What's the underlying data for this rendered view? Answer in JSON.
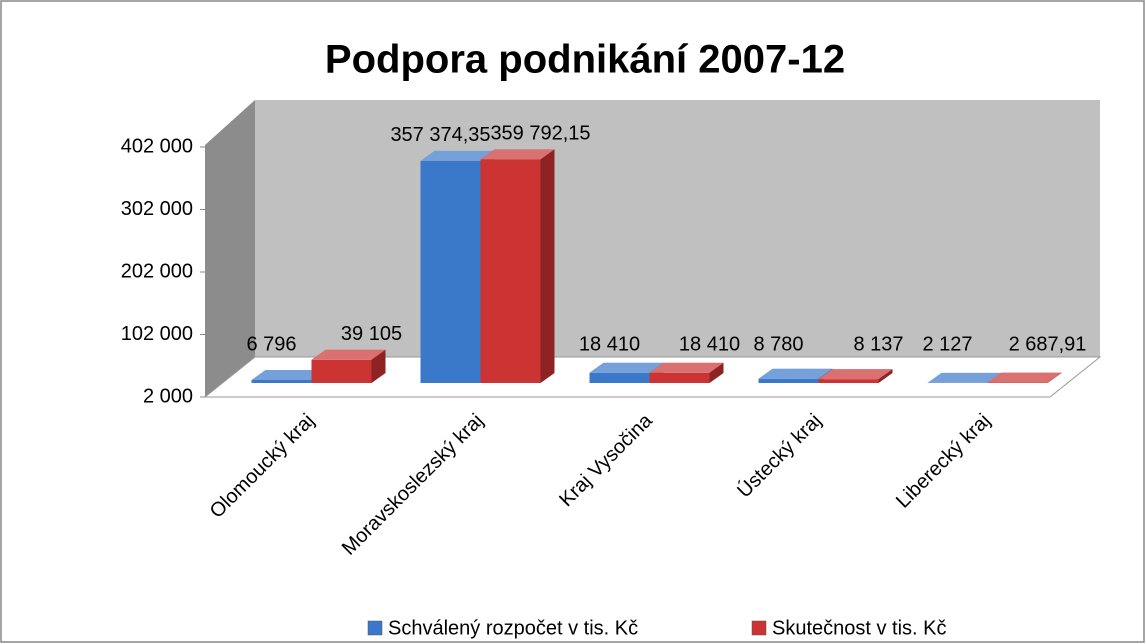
{
  "chart_data": {
    "type": "bar3d",
    "title": "Podpora podnikání 2007-12",
    "categories": [
      "Olomoucký kraj",
      "Moravskoslezský kraj",
      "Kraj Vysočina",
      "Ústecký kraj",
      "Liberecký kraj"
    ],
    "series": [
      {
        "name": "Schválený rozpočet v tis. Kč",
        "color": "#3a78c9",
        "values": [
          6796,
          357374.35,
          18410,
          8780,
          2127
        ],
        "value_labels": [
          "6 796",
          "357 374,35",
          "18 410",
          "8 780",
          "2 127"
        ]
      },
      {
        "name": "Skutečnost v tis. Kč",
        "color": "#cc3333",
        "values": [
          39105,
          359792.15,
          18410,
          8137,
          2687.91
        ],
        "value_labels": [
          "39 105",
          "359 792,15",
          "18 410",
          "8 137",
          "2 687,91"
        ]
      }
    ],
    "ylim": [
      2000,
      402000
    ],
    "yticks": [
      {
        "value": 2000,
        "label": "2 000"
      },
      {
        "value": 102000,
        "label": "102 000"
      },
      {
        "value": 202000,
        "label": "202 000"
      },
      {
        "value": 302000,
        "label": "302 000"
      },
      {
        "value": 402000,
        "label": "402 000"
      }
    ],
    "legend": "bottom"
  }
}
